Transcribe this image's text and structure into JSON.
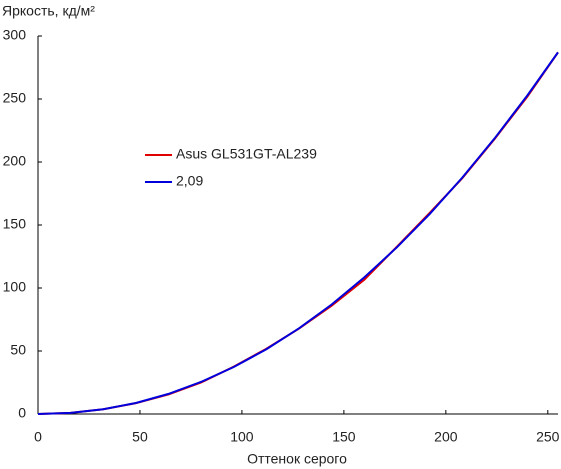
{
  "chart_data": {
    "type": "line",
    "y_label": "Яркость, кд/м²",
    "x_label": "Оттенок серого",
    "x": [
      0,
      16,
      32,
      48,
      64,
      80,
      96,
      112,
      128,
      144,
      160,
      176,
      192,
      208,
      224,
      240,
      255
    ],
    "series": [
      {
        "name": "Asus GL531GT-AL239",
        "color": "#e00000",
        "values": [
          0,
          0.9,
          3.8,
          8.6,
          15.5,
          25.0,
          37.6,
          51.8,
          67.8,
          86.0,
          106.5,
          132.8,
          159.5,
          187.0,
          218.5,
          252.0,
          287
        ]
      },
      {
        "name": "2,09",
        "color": "#0000dd",
        "values": [
          0,
          0.88,
          3.75,
          8.75,
          15.96,
          25.5,
          37.3,
          51.4,
          68.0,
          86.9,
          108.4,
          132.3,
          158.6,
          187.5,
          218.9,
          252.9,
          287
        ]
      }
    ],
    "xlim": [
      0,
      255
    ],
    "xticks": [
      0,
      50,
      100,
      150,
      200,
      250
    ],
    "ylim": [
      0,
      300
    ],
    "yticks": [
      0,
      50,
      100,
      150,
      200,
      250,
      300
    ],
    "grid": false
  }
}
